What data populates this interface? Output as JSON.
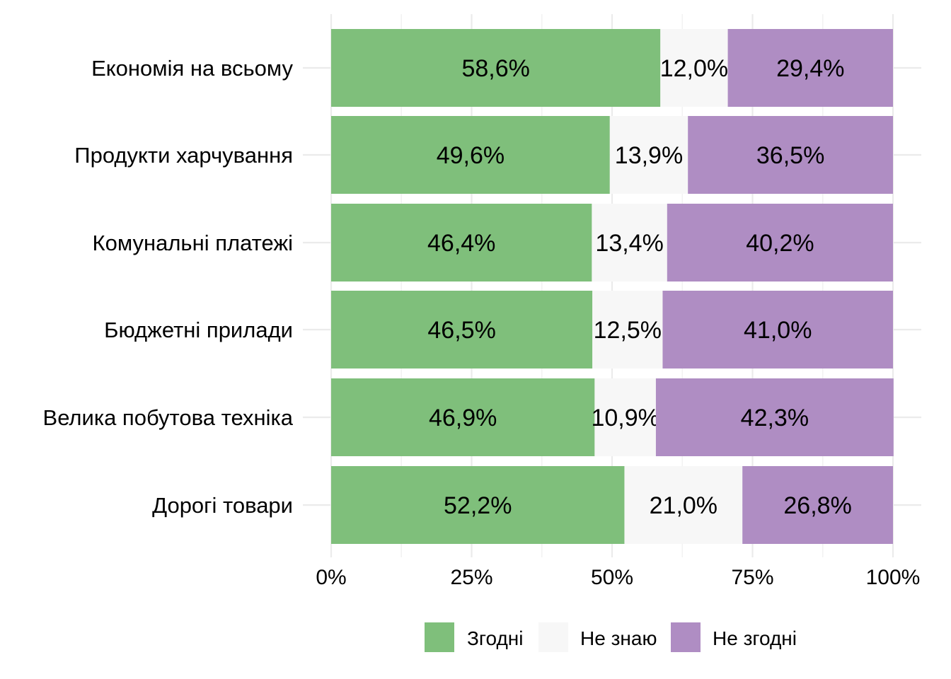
{
  "chart_data": {
    "type": "bar",
    "orientation": "horizontal",
    "stacked": true,
    "title": "",
    "xlabel": "",
    "ylabel": "",
    "xlim": [
      0,
      100
    ],
    "x_ticks": [
      "0%",
      "25%",
      "50%",
      "75%",
      "100%"
    ],
    "grid": true,
    "legend_position": "bottom",
    "categories": [
      "Економія на всьому",
      "Продукти харчування",
      "Комунальні платежі",
      "Бюджетні прилади",
      "Велика побутова техніка",
      "Дорогі товари"
    ],
    "series": [
      {
        "name": "Згодні",
        "color": "#7fbf7b",
        "values": [
          58.6,
          49.6,
          46.4,
          46.5,
          46.9,
          52.2
        ],
        "labels": [
          "58,6%",
          "49,6%",
          "46,4%",
          "46,5%",
          "46,9%",
          "52,2%"
        ]
      },
      {
        "name": "Не знаю",
        "color": "#f7f7f7",
        "values": [
          12.0,
          13.9,
          13.4,
          12.5,
          10.9,
          21.0
        ],
        "labels": [
          "12,0%",
          "13,9%",
          "13,4%",
          "12,5%",
          "10,9%",
          "21,0%"
        ]
      },
      {
        "name": "Не згодні",
        "color": "#af8dc3",
        "values": [
          29.4,
          36.5,
          40.2,
          41.0,
          42.3,
          26.8
        ],
        "labels": [
          "29,4%",
          "36,5%",
          "40,2%",
          "41,0%",
          "42,3%",
          "26,8%"
        ]
      }
    ]
  }
}
